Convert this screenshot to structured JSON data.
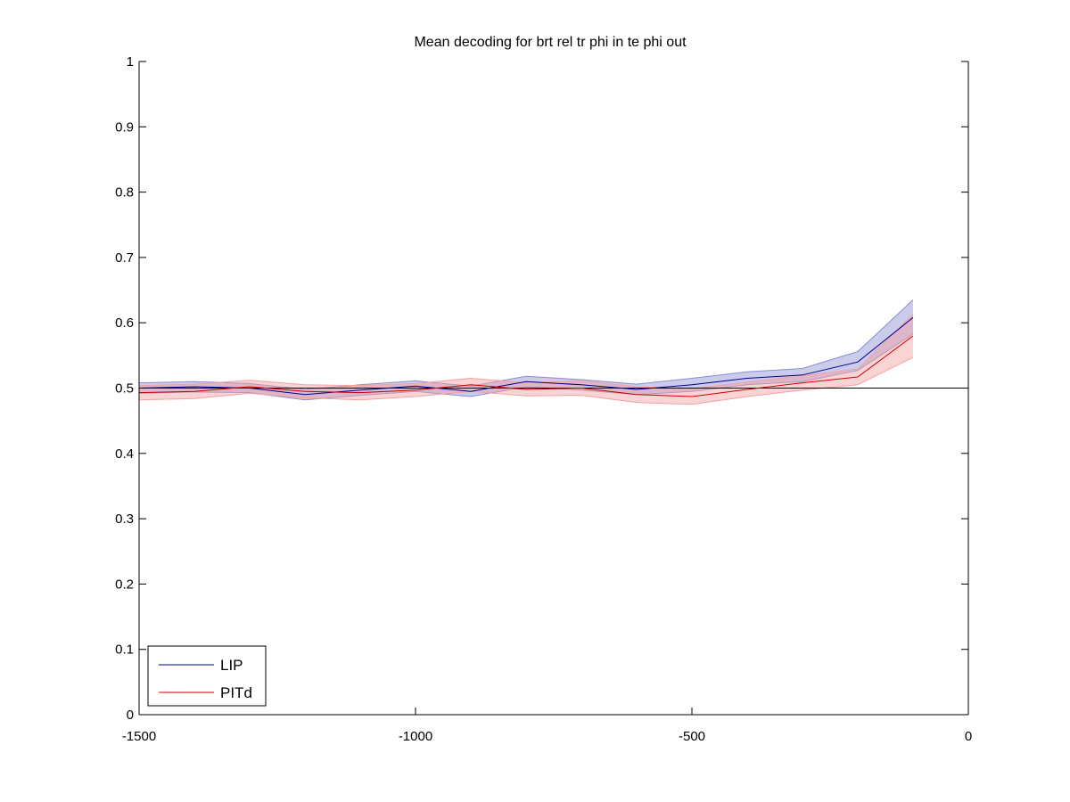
{
  "chart_data": {
    "type": "line",
    "title": "Mean decoding for brt rel tr phi in te phi out",
    "xlabel": "",
    "ylabel": "",
    "xlim": [
      -1500,
      0
    ],
    "ylim": [
      0,
      1
    ],
    "x_ticks": [
      -1500,
      -1000,
      -500,
      0
    ],
    "x_tick_labels": [
      "-1500",
      "-1000",
      "-500",
      "0"
    ],
    "y_ticks": [
      0,
      0.1,
      0.2,
      0.3,
      0.4,
      0.5,
      0.6,
      0.7,
      0.8,
      0.9,
      1
    ],
    "y_tick_labels": [
      "0",
      "0.1",
      "0.2",
      "0.3",
      "0.4",
      "0.5",
      "0.6",
      "0.7",
      "0.8",
      "0.9",
      "1"
    ],
    "grid": false,
    "legend_position": "bottom-left",
    "reference_line": {
      "y": 0.5,
      "color": "#000000"
    },
    "x": [
      -1500,
      -1400,
      -1300,
      -1200,
      -1100,
      -1000,
      -900,
      -800,
      -700,
      -600,
      -500,
      -400,
      -300,
      -200,
      -100
    ],
    "series": [
      {
        "name": "LIP",
        "color": "#00008b",
        "band_color": "#8c8cd2",
        "values": [
          0.5,
          0.502,
          0.5,
          0.49,
          0.497,
          0.503,
          0.495,
          0.51,
          0.505,
          0.498,
          0.505,
          0.515,
          0.52,
          0.54,
          0.608
        ],
        "lower": [
          0.492,
          0.494,
          0.493,
          0.482,
          0.489,
          0.495,
          0.487,
          0.502,
          0.497,
          0.49,
          0.495,
          0.505,
          0.51,
          0.527,
          0.583
        ],
        "upper": [
          0.508,
          0.51,
          0.507,
          0.498,
          0.505,
          0.511,
          0.503,
          0.518,
          0.513,
          0.506,
          0.515,
          0.525,
          0.53,
          0.556,
          0.635
        ]
      },
      {
        "name": "PITd",
        "color": "#cc0000",
        "band_color": "#f5a0a0",
        "values": [
          0.493,
          0.495,
          0.502,
          0.495,
          0.493,
          0.497,
          0.505,
          0.498,
          0.5,
          0.49,
          0.487,
          0.498,
          0.508,
          0.517,
          0.58
        ],
        "lower": [
          0.482,
          0.484,
          0.492,
          0.485,
          0.482,
          0.487,
          0.495,
          0.488,
          0.489,
          0.478,
          0.475,
          0.487,
          0.497,
          0.505,
          0.547
        ],
        "upper": [
          0.504,
          0.506,
          0.512,
          0.505,
          0.504,
          0.507,
          0.515,
          0.508,
          0.511,
          0.502,
          0.499,
          0.509,
          0.519,
          0.529,
          0.613
        ]
      }
    ]
  }
}
